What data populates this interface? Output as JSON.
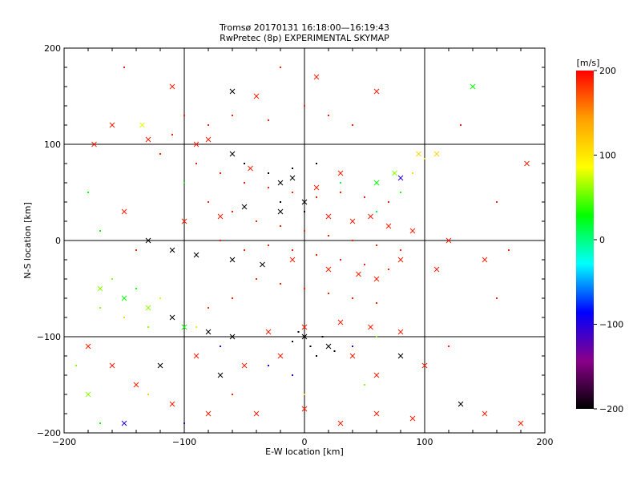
{
  "chart_data": {
    "type": "scatter",
    "title_line1": "Tromsø 20170131 16:18:00—16:19:43",
    "title_line2": "RwPretec (8p) EXPERIMENTAL SKYMAP",
    "xlabel": "E-W location [km]",
    "ylabel": "N-S location [km]",
    "xlim": [
      -200,
      200
    ],
    "ylim": [
      -200,
      200
    ],
    "x_ticks": [
      -200,
      -100,
      0,
      100,
      200
    ],
    "y_ticks": [
      -200,
      -100,
      0,
      100,
      200
    ],
    "x_tick_labels": [
      "−200",
      "−100",
      "0",
      "100",
      "200"
    ],
    "y_tick_labels": [
      "−200",
      "−100",
      "0",
      "100",
      "200"
    ],
    "grid": true,
    "colorbar": {
      "label": "[m/s]",
      "min": -200,
      "max": 200,
      "ticks": [
        -200,
        -100,
        0,
        100,
        200
      ],
      "tick_labels": [
        "−200",
        "−100",
        "0",
        "100",
        "200"
      ],
      "stops": [
        "#000000",
        "#8a008a",
        "#0000ff",
        "#00ffff",
        "#00ff00",
        "#ffff00",
        "#ffa000",
        "#ff0000"
      ]
    },
    "series": [
      {
        "marker": "cross",
        "points": [
          [
            -160,
            120,
            190
          ],
          [
            -130,
            105,
            190
          ],
          [
            -110,
            160,
            190
          ],
          [
            -60,
            155,
            -200
          ],
          [
            -40,
            150,
            190
          ],
          [
            10,
            170,
            190
          ],
          [
            60,
            155,
            190
          ],
          [
            140,
            160,
            30
          ],
          [
            -175,
            100,
            190
          ],
          [
            -135,
            120,
            80
          ],
          [
            -90,
            100,
            190
          ],
          [
            -80,
            105,
            190
          ],
          [
            -60,
            90,
            -200
          ],
          [
            -45,
            75,
            190
          ],
          [
            -20,
            60,
            -200
          ],
          [
            -10,
            65,
            -200
          ],
          [
            10,
            55,
            190
          ],
          [
            30,
            70,
            190
          ],
          [
            60,
            60,
            30
          ],
          [
            75,
            70,
            60
          ],
          [
            80,
            65,
            -100
          ],
          [
            95,
            90,
            110
          ],
          [
            110,
            90,
            110
          ],
          [
            185,
            80,
            190
          ],
          [
            -150,
            30,
            190
          ],
          [
            -100,
            20,
            190
          ],
          [
            -70,
            25,
            190
          ],
          [
            -50,
            35,
            -200
          ],
          [
            -20,
            30,
            -200
          ],
          [
            0,
            40,
            -200
          ],
          [
            20,
            25,
            190
          ],
          [
            40,
            20,
            190
          ],
          [
            55,
            25,
            190
          ],
          [
            70,
            15,
            190
          ],
          [
            90,
            10,
            190
          ],
          [
            120,
            0,
            190
          ],
          [
            -130,
            0,
            -200
          ],
          [
            -110,
            -10,
            -200
          ],
          [
            -90,
            -15,
            -200
          ],
          [
            -60,
            -20,
            -200
          ],
          [
            -35,
            -25,
            -200
          ],
          [
            -10,
            -20,
            190
          ],
          [
            20,
            -30,
            190
          ],
          [
            45,
            -35,
            190
          ],
          [
            60,
            -40,
            190
          ],
          [
            80,
            -20,
            190
          ],
          [
            110,
            -30,
            190
          ],
          [
            150,
            -20,
            190
          ],
          [
            -170,
            -50,
            60
          ],
          [
            -150,
            -60,
            30
          ],
          [
            -130,
            -70,
            60
          ],
          [
            -110,
            -80,
            -200
          ],
          [
            -100,
            -90,
            30
          ],
          [
            -80,
            -95,
            -200
          ],
          [
            -60,
            -100,
            -200
          ],
          [
            -30,
            -95,
            190
          ],
          [
            0,
            -90,
            190
          ],
          [
            30,
            -85,
            190
          ],
          [
            55,
            -90,
            190
          ],
          [
            80,
            -95,
            190
          ],
          [
            -180,
            -110,
            190
          ],
          [
            -160,
            -130,
            190
          ],
          [
            -140,
            -150,
            190
          ],
          [
            -120,
            -130,
            -200
          ],
          [
            -90,
            -120,
            190
          ],
          [
            -70,
            -140,
            -200
          ],
          [
            -50,
            -130,
            190
          ],
          [
            -20,
            -120,
            190
          ],
          [
            0,
            -100,
            -200
          ],
          [
            20,
            -110,
            -200
          ],
          [
            40,
            -120,
            190
          ],
          [
            60,
            -140,
            190
          ],
          [
            80,
            -120,
            -200
          ],
          [
            100,
            -130,
            190
          ],
          [
            130,
            -170,
            -200
          ],
          [
            -180,
            -160,
            60
          ],
          [
            -150,
            -190,
            -100
          ],
          [
            -110,
            -170,
            190
          ],
          [
            -80,
            -180,
            190
          ],
          [
            -40,
            -180,
            190
          ],
          [
            0,
            -175,
            190
          ],
          [
            30,
            -190,
            190
          ],
          [
            60,
            -180,
            190
          ],
          [
            90,
            -185,
            190
          ],
          [
            150,
            -180,
            190
          ],
          [
            180,
            -190,
            190
          ]
        ]
      },
      {
        "marker": "dot",
        "points": [
          [
            -100,
            130,
            190
          ],
          [
            -80,
            120,
            190
          ],
          [
            -60,
            130,
            190
          ],
          [
            -30,
            125,
            190
          ],
          [
            0,
            140,
            190
          ],
          [
            20,
            130,
            190
          ],
          [
            40,
            120,
            190
          ],
          [
            -120,
            90,
            190
          ],
          [
            -90,
            80,
            190
          ],
          [
            -70,
            70,
            190
          ],
          [
            -50,
            60,
            190
          ],
          [
            -30,
            55,
            190
          ],
          [
            -10,
            50,
            190
          ],
          [
            10,
            45,
            190
          ],
          [
            30,
            50,
            190
          ],
          [
            50,
            45,
            190
          ],
          [
            70,
            40,
            190
          ],
          [
            -80,
            40,
            190
          ],
          [
            -60,
            30,
            190
          ],
          [
            -40,
            20,
            190
          ],
          [
            -20,
            15,
            190
          ],
          [
            0,
            10,
            190
          ],
          [
            20,
            5,
            190
          ],
          [
            40,
            0,
            190
          ],
          [
            60,
            -5,
            190
          ],
          [
            80,
            -10,
            190
          ],
          [
            -70,
            0,
            190
          ],
          [
            -50,
            -10,
            190
          ],
          [
            -30,
            -5,
            190
          ],
          [
            -10,
            -10,
            190
          ],
          [
            10,
            -15,
            190
          ],
          [
            30,
            -20,
            190
          ],
          [
            50,
            -25,
            190
          ],
          [
            70,
            -30,
            190
          ],
          [
            -40,
            -40,
            190
          ],
          [
            -20,
            -45,
            190
          ],
          [
            0,
            -50,
            190
          ],
          [
            20,
            -55,
            190
          ],
          [
            40,
            -60,
            190
          ],
          [
            60,
            -65,
            190
          ],
          [
            -60,
            -60,
            190
          ],
          [
            -80,
            -70,
            190
          ],
          [
            -50,
            80,
            -200
          ],
          [
            -30,
            70,
            -200
          ],
          [
            -10,
            75,
            -200
          ],
          [
            10,
            80,
            -200
          ],
          [
            -20,
            40,
            -200
          ],
          [
            0,
            30,
            -200
          ],
          [
            -10,
            -105,
            -200
          ],
          [
            5,
            -110,
            -200
          ],
          [
            15,
            -100,
            -200
          ],
          [
            10,
            -120,
            -200
          ],
          [
            -5,
            -95,
            -200
          ],
          [
            25,
            -115,
            -200
          ],
          [
            -160,
            -40,
            60
          ],
          [
            -140,
            -50,
            30
          ],
          [
            -170,
            -70,
            60
          ],
          [
            -150,
            -80,
            110
          ],
          [
            -120,
            -60,
            80
          ],
          [
            -130,
            -90,
            60
          ],
          [
            -90,
            -90,
            80
          ],
          [
            -70,
            -110,
            -100
          ],
          [
            -30,
            -130,
            -100
          ],
          [
            -10,
            -140,
            -100
          ],
          [
            40,
            -110,
            -100
          ],
          [
            60,
            -100,
            60
          ],
          [
            90,
            70,
            110
          ],
          [
            100,
            85,
            110
          ],
          [
            80,
            50,
            30
          ],
          [
            60,
            30,
            10
          ],
          [
            30,
            60,
            10
          ],
          [
            -100,
            60,
            30
          ],
          [
            -180,
            50,
            30
          ],
          [
            -170,
            10,
            30
          ],
          [
            -190,
            -130,
            60
          ],
          [
            -170,
            -190,
            30
          ],
          [
            -130,
            -160,
            110
          ],
          [
            -100,
            -190,
            -100
          ],
          [
            0,
            -160,
            110
          ],
          [
            50,
            -150,
            60
          ],
          [
            120,
            -110,
            190
          ],
          [
            160,
            -60,
            190
          ],
          [
            170,
            -10,
            190
          ],
          [
            160,
            40,
            190
          ],
          [
            130,
            120,
            190
          ],
          [
            -20,
            180,
            190
          ],
          [
            -150,
            180,
            190
          ],
          [
            -110,
            110,
            190
          ],
          [
            -140,
            -10,
            190
          ],
          [
            -60,
            -160,
            190
          ]
        ]
      }
    ]
  }
}
